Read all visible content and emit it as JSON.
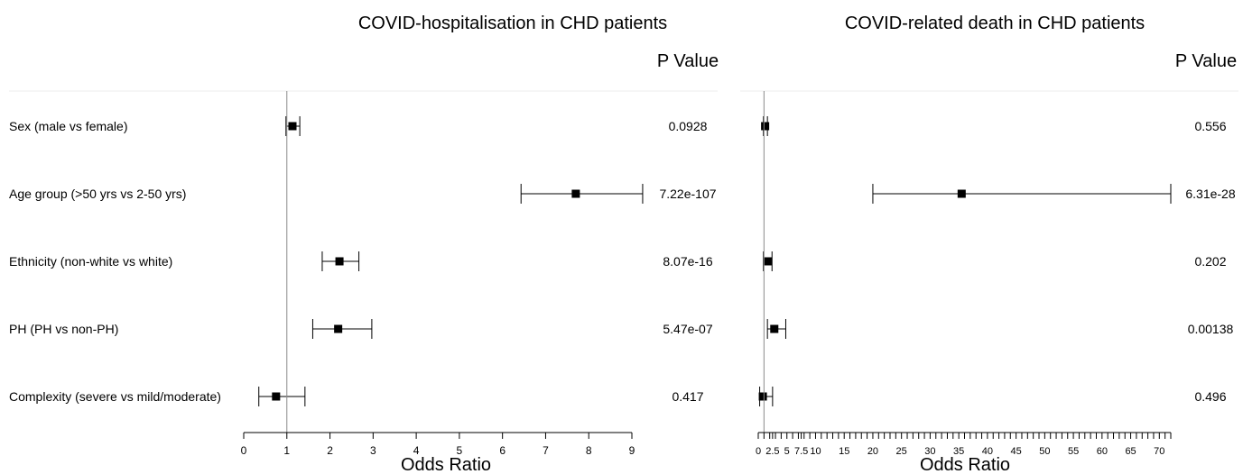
{
  "chart_data": [
    {
      "type": "forest",
      "title": "COVID-hospitalisation in CHD patients",
      "pvalue_header": "P Value",
      "xlabel": "Odds Ratio",
      "xlim": [
        0,
        9
      ],
      "reference_line": 1,
      "xticks": [
        "0",
        "1",
        "2",
        "3",
        "4",
        "5",
        "6",
        "7",
        "8",
        "9"
      ],
      "xtick_values": [
        0,
        1,
        2,
        3,
        4,
        5,
        6,
        7,
        8,
        9
      ],
      "rows": [
        {
          "label": "Sex (male vs female)",
          "or": 1.13,
          "lower": 0.98,
          "upper": 1.3,
          "p": "0.0928"
        },
        {
          "label": "Age group (>50 yrs vs 2-50 yrs)",
          "or": 7.7,
          "lower": 6.43,
          "upper": 9.25,
          "p": "7.22e-107"
        },
        {
          "label": "Ethnicity (non-white vs white)",
          "or": 2.22,
          "lower": 1.82,
          "upper": 2.67,
          "p": "8.07e-16"
        },
        {
          "label": "PH (PH vs non-PH)",
          "or": 2.19,
          "lower": 1.6,
          "upper": 2.97,
          "p": "5.47e-07"
        },
        {
          "label": "Complexity (severe vs mild/moderate)",
          "or": 0.75,
          "lower": 0.35,
          "upper": 1.42,
          "p": "0.417"
        }
      ]
    },
    {
      "type": "forest",
      "title": "COVID-related death in CHD patients",
      "pvalue_header": "P Value",
      "xlabel": "Odds Ratio",
      "xlim": [
        0,
        72
      ],
      "reference_line": 1,
      "xticks": [
        "0",
        "2.5",
        "5",
        "7.5",
        "10",
        "15",
        "20",
        "25",
        "30",
        "35",
        "40",
        "45",
        "50",
        "55",
        "60",
        "65",
        "70"
      ],
      "xtick_values": [
        0,
        2.5,
        5,
        7.5,
        10,
        15,
        20,
        25,
        30,
        35,
        40,
        45,
        50,
        55,
        60,
        65,
        70
      ],
      "minor_ticks": [
        1,
        2,
        3,
        4,
        6,
        7,
        8,
        9,
        11,
        12,
        13,
        14,
        16,
        17,
        18,
        19,
        21,
        22,
        23,
        24,
        26,
        27,
        28,
        29,
        31,
        32,
        33,
        34,
        36,
        37,
        38,
        39,
        41,
        42,
        43,
        44,
        46,
        47,
        48,
        49,
        51,
        52,
        53,
        54,
        56,
        57,
        58,
        59,
        61,
        62,
        63,
        64,
        66,
        67,
        68,
        69,
        71,
        72
      ],
      "rows": [
        {
          "label": "Sex (male vs female)",
          "or": 1.2,
          "lower": 0.9,
          "upper": 1.6,
          "p": "0.556"
        },
        {
          "label": "Age group (>50 yrs vs 2-50 yrs)",
          "or": 35.5,
          "lower": 20.0,
          "upper": 72.0,
          "p": "6.31e-28"
        },
        {
          "label": "Ethnicity (non-white vs white)",
          "or": 1.7,
          "lower": 0.9,
          "upper": 2.4,
          "p": "0.202"
        },
        {
          "label": "PH (PH vs non-PH)",
          "or": 2.8,
          "lower": 1.6,
          "upper": 4.8,
          "p": "0.00138"
        },
        {
          "label": "Complexity (severe vs mild/moderate)",
          "or": 0.8,
          "lower": 0.25,
          "upper": 2.5,
          "p": "0.496"
        }
      ]
    }
  ]
}
